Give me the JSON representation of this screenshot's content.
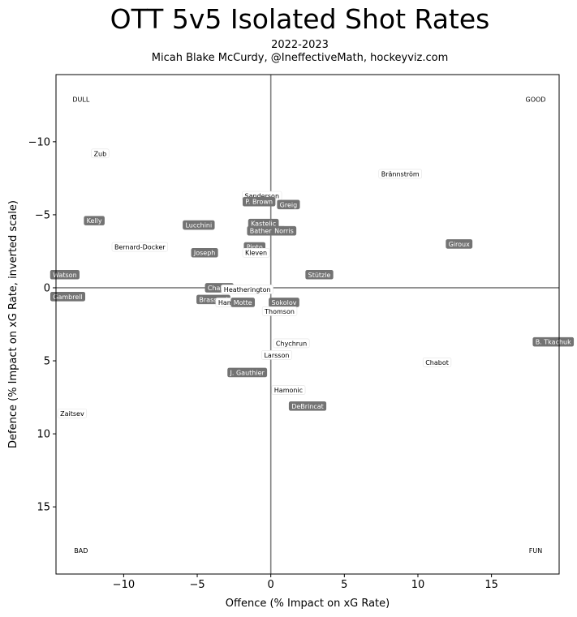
{
  "title": "OTT 5v5 Isolated Shot Rates",
  "subtitle_line1": "2022-2023",
  "subtitle_line2": "Micah Blake McCurdy, @IneffectiveMath, hockeyviz.com",
  "chart_data": {
    "type": "scatter",
    "xlabel": "Offence (% Impact on xG Rate)",
    "ylabel": "Defence (% Impact on xG Rate, inverted scale)",
    "xlim": [
      -14.6,
      19.6
    ],
    "ylim": [
      -14.6,
      19.6
    ],
    "y_inverted": true,
    "xticks": [
      -10,
      -5,
      0,
      5,
      10,
      15
    ],
    "yticks": [
      -10,
      -5,
      0,
      5,
      10,
      15
    ],
    "xtick_labels": [
      "−10",
      "−5",
      "0",
      "5",
      "10",
      "15"
    ],
    "ytick_labels": [
      "−10",
      "−5",
      "0",
      "5",
      "10",
      "15"
    ],
    "reference_lines": {
      "x": 0,
      "y": 0
    },
    "corner_labels": [
      {
        "text": "DULL",
        "x": -12.9,
        "y": -12.9
      },
      {
        "text": "GOOD",
        "x": 18.0,
        "y": -12.9
      },
      {
        "text": "BAD",
        "x": -12.9,
        "y": 18.0
      },
      {
        "text": "FUN",
        "x": 18.0,
        "y": 18.0
      }
    ],
    "players": [
      {
        "name": "Zub",
        "x": -11.6,
        "y": -9.2,
        "style": "light"
      },
      {
        "name": "Brännström",
        "x": 8.8,
        "y": -7.8,
        "style": "light"
      },
      {
        "name": "Sanderson",
        "x": -0.6,
        "y": -6.3,
        "style": "light"
      },
      {
        "name": "P. Brown",
        "x": -0.8,
        "y": -5.9,
        "style": "dark"
      },
      {
        "name": "Greig",
        "x": 1.2,
        "y": -5.7,
        "style": "dark"
      },
      {
        "name": "Kelly",
        "x": -12.0,
        "y": -4.6,
        "style": "dark"
      },
      {
        "name": "Lucchini",
        "x": -4.9,
        "y": -4.3,
        "style": "dark"
      },
      {
        "name": "Kastelic",
        "x": -0.5,
        "y": -4.4,
        "style": "dark"
      },
      {
        "name": "Batherson",
        "x": -0.3,
        "y": -3.9,
        "style": "dark"
      },
      {
        "name": "Norris",
        "x": 0.9,
        "y": -3.9,
        "style": "dark"
      },
      {
        "name": "Bernard-Docker",
        "x": -8.9,
        "y": -2.8,
        "style": "light"
      },
      {
        "name": "Giroux",
        "x": 12.8,
        "y": -3.0,
        "style": "dark"
      },
      {
        "name": "Pinto",
        "x": -1.1,
        "y": -2.8,
        "style": "dark"
      },
      {
        "name": "Kleven",
        "x": -1.0,
        "y": -2.4,
        "style": "light"
      },
      {
        "name": "Joseph",
        "x": -4.5,
        "y": -2.4,
        "style": "dark"
      },
      {
        "name": "Stützle",
        "x": 3.3,
        "y": -0.9,
        "style": "dark"
      },
      {
        "name": "Watson",
        "x": -14.0,
        "y": -0.9,
        "style": "dark"
      },
      {
        "name": "Chabot",
        "x": -3.5,
        "y": 0.0,
        "style": "dark"
      },
      {
        "name": "Gambrell",
        "x": -13.8,
        "y": 0.6,
        "style": "dark"
      },
      {
        "name": "Heatherington",
        "x": -1.6,
        "y": 0.1,
        "style": "light"
      },
      {
        "name": "Brassard",
        "x": -3.9,
        "y": 0.8,
        "style": "dark"
      },
      {
        "name": "Hamonic",
        "x": -2.6,
        "y": 1.0,
        "style": "light"
      },
      {
        "name": "Motte",
        "x": -1.9,
        "y": 1.0,
        "style": "dark"
      },
      {
        "name": "Sokolov",
        "x": 0.9,
        "y": 1.0,
        "style": "dark"
      },
      {
        "name": "Thomson",
        "x": 0.6,
        "y": 1.6,
        "style": "light"
      },
      {
        "name": "Chychrun",
        "x": 1.4,
        "y": 3.8,
        "style": "light"
      },
      {
        "name": "Larsson",
        "x": 0.4,
        "y": 4.6,
        "style": "light"
      },
      {
        "name": "B. Tkachuk",
        "x": 19.2,
        "y": 3.7,
        "style": "dark"
      },
      {
        "name": "Chabot",
        "x": 11.3,
        "y": 5.1,
        "style": "light"
      },
      {
        "name": "J. Gauthier",
        "x": -1.6,
        "y": 5.8,
        "style": "dark"
      },
      {
        "name": "Hamonic",
        "x": 1.2,
        "y": 7.0,
        "style": "light"
      },
      {
        "name": "DeBrincat",
        "x": 2.5,
        "y": 8.1,
        "style": "dark"
      },
      {
        "name": "Zaitsev",
        "x": -13.5,
        "y": 8.6,
        "style": "light"
      }
    ]
  },
  "colors": {
    "dark_label_bg": "#737373",
    "dark_label_text": "#ffffff",
    "light_label_bg": "#ffffff",
    "light_label_text": "#000000",
    "reference_line": "#808080",
    "frame": "#000000"
  }
}
